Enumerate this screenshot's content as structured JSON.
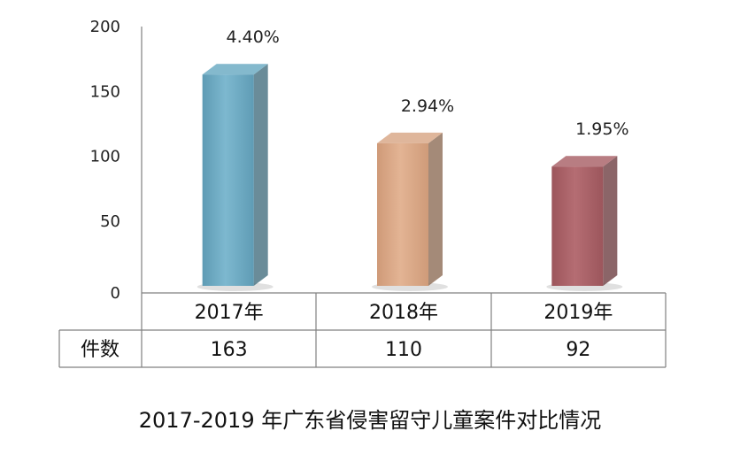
{
  "chart_data": {
    "type": "bar",
    "title": "2017-2019 年广东省侵害留守儿童案件对比情况",
    "categories": [
      "2017年",
      "2018年",
      "2019年"
    ],
    "values": [
      163,
      110,
      92
    ],
    "data_labels": [
      "4.40%",
      "2.94%",
      "1.95%"
    ],
    "table_row_label": "件数",
    "table_values": [
      "163",
      "110",
      "92"
    ],
    "yticks": [
      "0",
      "50",
      "100",
      "150",
      "200"
    ],
    "ylim": [
      0,
      200
    ],
    "grid": false,
    "legend": "none",
    "colors": [
      "#6aaac3",
      "#d8a685",
      "#a96167"
    ]
  }
}
